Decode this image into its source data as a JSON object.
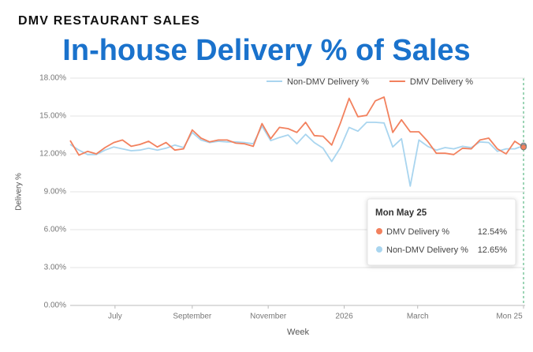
{
  "header": "DMV RESTAURANT SALES",
  "chart_data": {
    "type": "line",
    "title": "In-house Delivery % of Sales",
    "x_label": "Week",
    "y_label": "Delivery %",
    "x": [
      "2025-05-26",
      "2025-06-02",
      "2025-06-09",
      "2025-06-16",
      "2025-06-23",
      "2025-06-30",
      "2025-07-07",
      "2025-07-14",
      "2025-07-21",
      "2025-07-28",
      "2025-08-04",
      "2025-08-11",
      "2025-08-18",
      "2025-08-25",
      "2025-09-01",
      "2025-09-08",
      "2025-09-15",
      "2025-09-22",
      "2025-09-29",
      "2025-10-06",
      "2025-10-13",
      "2025-10-20",
      "2025-10-27",
      "2025-11-03",
      "2025-11-10",
      "2025-11-17",
      "2025-11-24",
      "2025-12-01",
      "2025-12-08",
      "2025-12-15",
      "2025-12-22",
      "2025-12-29",
      "2026-01-05",
      "2026-01-12",
      "2026-01-19",
      "2026-01-26",
      "2026-02-02",
      "2026-02-09",
      "2026-02-16",
      "2026-02-23",
      "2026-03-02",
      "2026-03-09",
      "2026-03-16",
      "2026-03-23",
      "2026-03-30",
      "2026-04-06",
      "2026-04-13",
      "2026-04-20",
      "2026-04-27",
      "2026-05-04",
      "2026-05-11",
      "2026-05-18",
      "2026-05-25"
    ],
    "series": [
      {
        "name": "Non-DMV Delivery %",
        "color": "#a9d5ef",
        "values": [
          12.75,
          12.3,
          11.95,
          11.95,
          12.3,
          12.55,
          12.4,
          12.25,
          12.3,
          12.45,
          12.3,
          12.45,
          12.7,
          12.5,
          13.7,
          13.1,
          12.9,
          13.0,
          12.95,
          12.95,
          12.9,
          12.8,
          14.2,
          13.05,
          13.3,
          13.5,
          12.8,
          13.55,
          12.9,
          12.45,
          11.4,
          12.5,
          14.1,
          13.8,
          14.5,
          14.5,
          14.45,
          12.55,
          13.2,
          9.45,
          13.1,
          12.6,
          12.3,
          12.5,
          12.4,
          12.6,
          12.5,
          12.95,
          12.9,
          12.2,
          12.4,
          12.4,
          12.65
        ]
      },
      {
        "name": "DMV Delivery %",
        "color": "#f2815e",
        "values": [
          13.06,
          11.9,
          12.2,
          12.0,
          12.5,
          12.9,
          13.1,
          12.6,
          12.75,
          13.0,
          12.55,
          12.9,
          12.3,
          12.4,
          13.9,
          13.25,
          12.95,
          13.1,
          13.1,
          12.85,
          12.8,
          12.6,
          14.4,
          13.2,
          14.1,
          14.0,
          13.7,
          14.5,
          13.45,
          13.4,
          12.7,
          14.45,
          16.4,
          14.95,
          15.05,
          16.2,
          16.5,
          13.7,
          14.7,
          13.75,
          13.75,
          13.0,
          12.05,
          12.05,
          11.95,
          12.45,
          12.4,
          13.1,
          13.25,
          12.4,
          12.0,
          13.0,
          12.54
        ]
      }
    ],
    "xlim": [
      "2025-05-26",
      "2026-05-25"
    ],
    "xticks": [
      {
        "value": "2025-07-01",
        "label": "July"
      },
      {
        "value": "2025-09-01",
        "label": "September"
      },
      {
        "value": "2025-11-01",
        "label": "November"
      },
      {
        "value": "2026-01-01",
        "label": "2026"
      },
      {
        "value": "2026-03-01",
        "label": "March"
      },
      {
        "value": "2026-05-25",
        "label": "Mon 25"
      }
    ],
    "ylim": [
      0,
      18
    ],
    "yticks": [
      {
        "value": 0,
        "label": "0.00%"
      },
      {
        "value": 3,
        "label": "3.00%"
      },
      {
        "value": 6,
        "label": "6.00%"
      },
      {
        "value": 9,
        "label": "9.00%"
      },
      {
        "value": 12,
        "label": "12.00%"
      },
      {
        "value": 15,
        "label": "15.00%"
      },
      {
        "value": 18,
        "label": "18.00%"
      }
    ],
    "grid": true,
    "legend": "top",
    "tooltip": {
      "title": "Mon May 25",
      "labels": [
        "12.54%",
        "12.65%"
      ]
    }
  }
}
